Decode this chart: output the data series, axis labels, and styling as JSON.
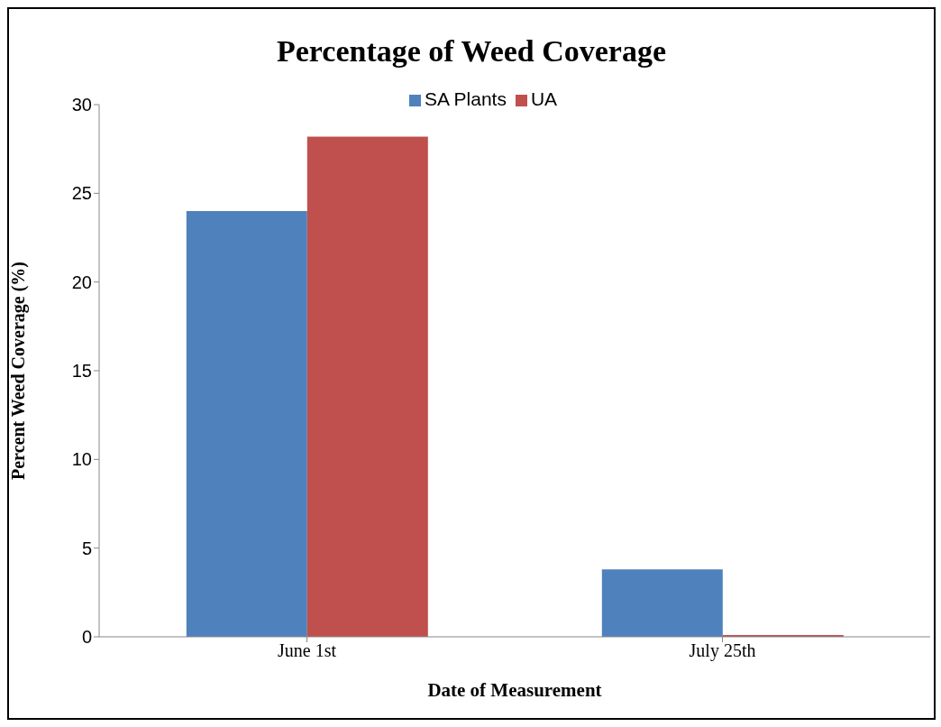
{
  "chart_data": {
    "type": "bar",
    "title": "Percentage of Weed Coverage",
    "xlabel": "Date of Measurement",
    "ylabel": "Percent Weed Coverage (%)",
    "categories": [
      "June  1st",
      "July  25th"
    ],
    "series": [
      {
        "name": "SA Plants",
        "color": "#4f81bd",
        "values": [
          24,
          3.8
        ]
      },
      {
        "name": "UA",
        "color": "#c0504d",
        "values": [
          28.2,
          0.1
        ]
      }
    ],
    "ylim": [
      0,
      30
    ],
    "yticks": [
      0,
      5,
      10,
      15,
      20,
      25,
      30
    ],
    "grid": false,
    "legend": "top"
  }
}
